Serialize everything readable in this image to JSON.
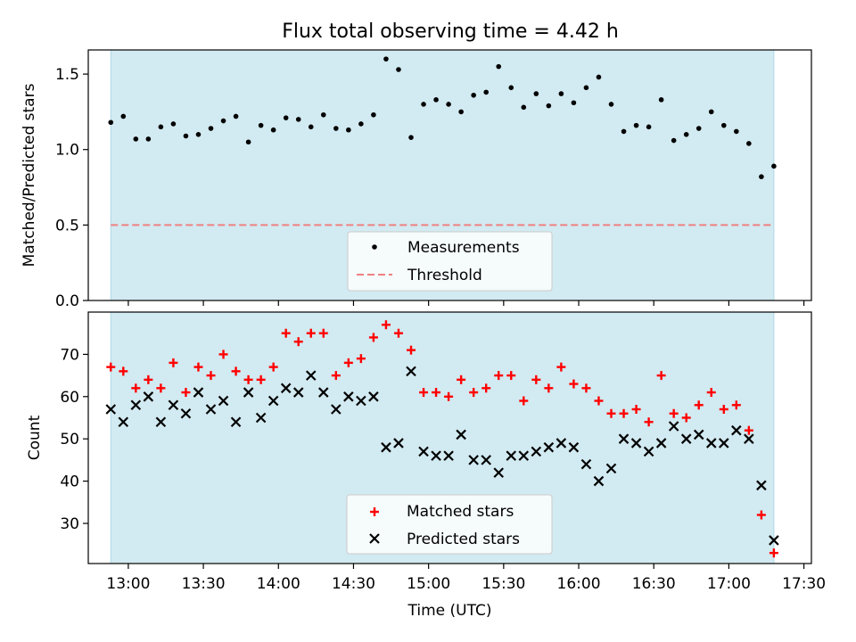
{
  "title": "Flux total observing time = 4.42 h",
  "colors": {
    "span": "#add8e6",
    "threshold": "#f08080",
    "matched": "#ff0000",
    "predicted": "#000000",
    "measurement": "#000000"
  },
  "chart_data": [
    {
      "type": "scatter",
      "ylabel": "Matched/Predicted stars",
      "xlabel": "",
      "xlim": [
        "12:44",
        "17:33"
      ],
      "ylim": [
        0,
        1.66
      ],
      "yticks": [
        "0.0",
        "0.5",
        "1.0",
        "1.5"
      ],
      "observation_span": [
        "12:53",
        "17:18"
      ],
      "threshold": 0.5,
      "legend": {
        "position": "bottom-center",
        "entries": [
          "Measurements",
          "Threshold"
        ]
      },
      "grid": false,
      "series": [
        {
          "name": "Measurements",
          "x": [
            "12:53",
            "12:58",
            "13:03",
            "13:08",
            "13:13",
            "13:18",
            "13:23",
            "13:28",
            "13:33",
            "13:38",
            "13:43",
            "13:48",
            "13:53",
            "13:58",
            "14:03",
            "14:08",
            "14:13",
            "14:18",
            "14:23",
            "14:28",
            "14:33",
            "14:38",
            "14:43",
            "14:48",
            "14:53",
            "14:58",
            "15:03",
            "15:08",
            "15:13",
            "15:18",
            "15:23",
            "15:28",
            "15:33",
            "15:38",
            "15:43",
            "15:48",
            "15:53",
            "15:58",
            "16:03",
            "16:08",
            "16:13",
            "16:18",
            "16:23",
            "16:28",
            "16:33",
            "16:38",
            "16:43",
            "16:48",
            "16:53",
            "16:58",
            "17:03",
            "17:08",
            "17:13",
            "17:18"
          ],
          "y": [
            1.18,
            1.22,
            1.07,
            1.07,
            1.15,
            1.17,
            1.09,
            1.1,
            1.14,
            1.19,
            1.22,
            1.05,
            1.16,
            1.13,
            1.21,
            1.2,
            1.15,
            1.23,
            1.14,
            1.13,
            1.17,
            1.23,
            1.6,
            1.53,
            1.08,
            1.3,
            1.33,
            1.3,
            1.25,
            1.36,
            1.38,
            1.55,
            1.41,
            1.28,
            1.37,
            1.29,
            1.37,
            1.31,
            1.41,
            1.48,
            1.3,
            1.12,
            1.16,
            1.15,
            1.33,
            1.06,
            1.1,
            1.14,
            1.25,
            1.16,
            1.12,
            1.04,
            0.82,
            0.89
          ]
        }
      ]
    },
    {
      "type": "scatter",
      "ylabel": "Count",
      "xlabel": "Time (UTC)",
      "xlim": [
        "12:44",
        "17:33"
      ],
      "ylim": [
        20.5,
        80
      ],
      "yticks": [
        "30",
        "40",
        "50",
        "60",
        "70"
      ],
      "xticks": [
        "13:00",
        "13:30",
        "14:00",
        "14:30",
        "15:00",
        "15:30",
        "16:00",
        "16:30",
        "17:00",
        "17:30"
      ],
      "observation_span": [
        "12:53",
        "17:18"
      ],
      "legend": {
        "position": "bottom-center",
        "entries": [
          "Matched stars",
          "Predicted stars"
        ]
      },
      "grid": false,
      "x": [
        "12:53",
        "12:58",
        "13:03",
        "13:08",
        "13:13",
        "13:18",
        "13:23",
        "13:28",
        "13:33",
        "13:38",
        "13:43",
        "13:48",
        "13:53",
        "13:58",
        "14:03",
        "14:08",
        "14:13",
        "14:18",
        "14:23",
        "14:28",
        "14:33",
        "14:38",
        "14:43",
        "14:48",
        "14:53",
        "14:58",
        "15:03",
        "15:08",
        "15:13",
        "15:18",
        "15:23",
        "15:28",
        "15:33",
        "15:38",
        "15:43",
        "15:48",
        "15:53",
        "15:58",
        "16:03",
        "16:08",
        "16:13",
        "16:18",
        "16:23",
        "16:28",
        "16:33",
        "16:38",
        "16:43",
        "16:48",
        "16:53",
        "16:58",
        "17:03",
        "17:08",
        "17:13",
        "17:18"
      ],
      "series": [
        {
          "name": "Matched stars",
          "values": [
            67,
            66,
            62,
            64,
            62,
            68,
            61,
            67,
            65,
            70,
            66,
            64,
            64,
            67,
            75,
            73,
            75,
            75,
            65,
            68,
            69,
            74,
            77,
            75,
            71,
            61,
            61,
            60,
            64,
            61,
            62,
            65,
            65,
            59,
            64,
            62,
            67,
            63,
            62,
            59,
            56,
            56,
            57,
            54,
            65,
            56,
            55,
            58,
            61,
            57,
            58,
            52,
            32,
            23
          ]
        },
        {
          "name": "Predicted stars",
          "values": [
            57,
            54,
            58,
            60,
            54,
            58,
            56,
            61,
            57,
            59,
            54,
            61,
            55,
            59,
            62,
            61,
            65,
            61,
            57,
            60,
            59,
            60,
            48,
            49,
            66,
            47,
            46,
            46,
            51,
            45,
            45,
            42,
            46,
            46,
            47,
            48,
            49,
            48,
            44,
            40,
            43,
            50,
            49,
            47,
            49,
            53,
            50,
            51,
            49,
            49,
            52,
            50,
            39,
            26
          ]
        }
      ]
    }
  ]
}
